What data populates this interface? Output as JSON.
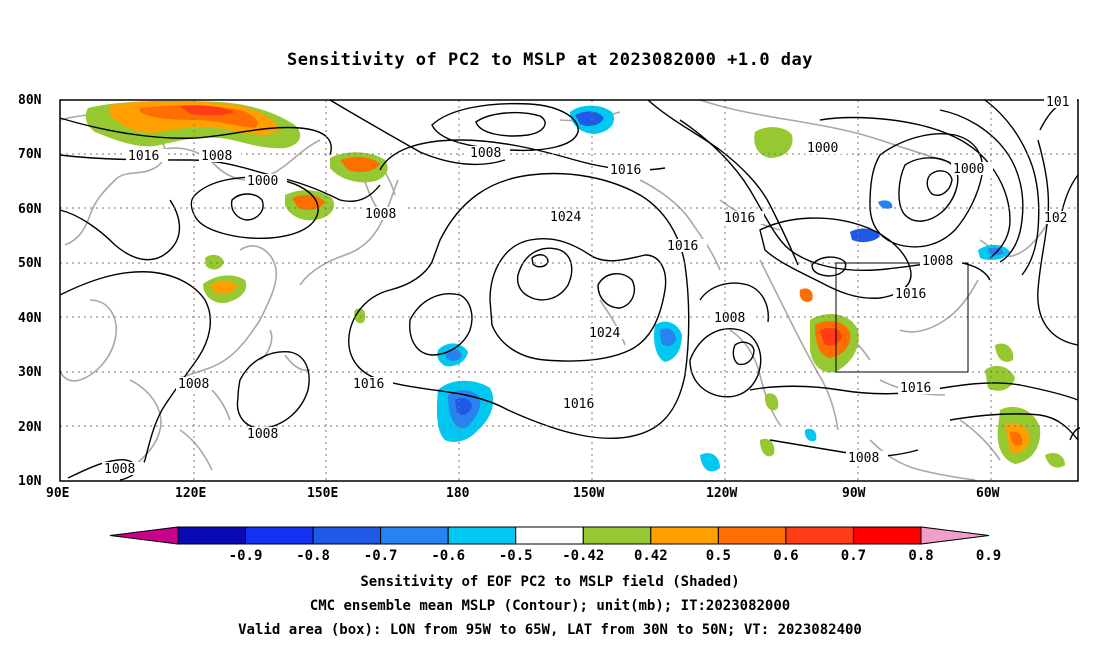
{
  "title": "Sensitivity of PC2 to MSLP at 2023082000 +1.0 day",
  "lat_labels": [
    "80N",
    "70N",
    "60N",
    "50N",
    "40N",
    "30N",
    "20N",
    "10N"
  ],
  "lon_labels": [
    "90E",
    "120E",
    "150E",
    "180",
    "150W",
    "120W",
    "90W",
    "60W"
  ],
  "contour_labels": [
    "1016",
    "1008",
    "1008",
    "1000",
    "1008",
    "1024",
    "1016",
    "1016",
    "1016",
    "1000",
    "1000",
    "1008",
    "1016",
    "1024",
    "1008",
    "1008",
    "1016",
    "1016",
    "1016",
    "1008",
    "1008",
    "1008",
    "101",
    "102"
  ],
  "colorbar": {
    "labels": [
      "-0.9",
      "-0.8",
      "-0.7",
      "-0.6",
      "-0.5",
      "-0.42",
      "0.42",
      "0.5",
      "0.6",
      "0.7",
      "0.8",
      "0.9"
    ],
    "colors": [
      "#c8008c",
      "#0a0ab4",
      "#1430f0",
      "#1e5ae6",
      "#2882f0",
      "#00c8f0",
      "#ffffff",
      "#96c832",
      "#ffa000",
      "#ff6e00",
      "#ff3c14",
      "#ff0000",
      "#f0a0c8"
    ]
  },
  "captions": [
    "Sensitivity of EOF PC2 to MSLP field (Shaded)",
    "CMC ensemble mean MSLP (Contour); unit(mb); IT:2023082000",
    "Valid area (box): LON from 95W to 65W, LAT from 30N to 50N; VT: 2023082400"
  ]
}
